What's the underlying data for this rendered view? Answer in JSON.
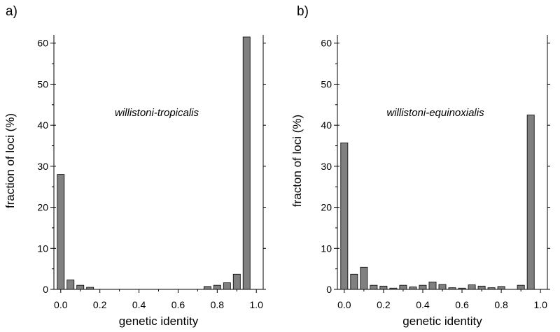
{
  "chart_data": [
    {
      "type": "bar",
      "panel_label": "a)",
      "annotation": "willistoni-tropicalis",
      "xlabel": "genetic identity",
      "ylabel": "fraction of loci (%)",
      "xlim": [
        -0.035,
        1.035
      ],
      "ylim": [
        0,
        62
      ],
      "xticks": [
        "0.0",
        "0.2",
        "0.4",
        "0.6",
        "0.8",
        "1.0"
      ],
      "yticks": [
        "0",
        "10",
        "20",
        "30",
        "40",
        "50",
        "60"
      ],
      "bin_width": 0.05,
      "x": [
        0.0,
        0.05,
        0.1,
        0.15,
        0.2,
        0.25,
        0.3,
        0.35,
        0.4,
        0.45,
        0.5,
        0.55,
        0.6,
        0.65,
        0.7,
        0.75,
        0.8,
        0.85,
        0.9,
        0.95
      ],
      "values": [
        28,
        2.3,
        1,
        0.5,
        0,
        0,
        0,
        0,
        0,
        0,
        0,
        0,
        0,
        0,
        0,
        0.7,
        1,
        1.6,
        3.7,
        61.5
      ]
    },
    {
      "type": "bar",
      "panel_label": "b)",
      "annotation": "willistoni-equinoxialis",
      "xlabel": "genetic identity",
      "ylabel": "fracton of loci (%)",
      "xlim": [
        -0.035,
        1.035
      ],
      "ylim": [
        0,
        62
      ],
      "xticks": [
        "0.0",
        "0.2",
        "0.4",
        "0.6",
        "0.8",
        "1.0"
      ],
      "yticks": [
        "0",
        "10",
        "20",
        "30",
        "40",
        "50",
        "60"
      ],
      "bin_width": 0.05,
      "x": [
        0.0,
        0.05,
        0.1,
        0.15,
        0.2,
        0.25,
        0.3,
        0.35,
        0.4,
        0.45,
        0.5,
        0.55,
        0.6,
        0.65,
        0.7,
        0.75,
        0.8,
        0.85,
        0.9,
        0.95
      ],
      "values": [
        35.7,
        3.7,
        5.4,
        1,
        0.8,
        0.3,
        1,
        0.6,
        1,
        1.8,
        1.2,
        0.4,
        0.3,
        1.1,
        0.8,
        0.4,
        0.7,
        0,
        1,
        42.5
      ]
    }
  ]
}
